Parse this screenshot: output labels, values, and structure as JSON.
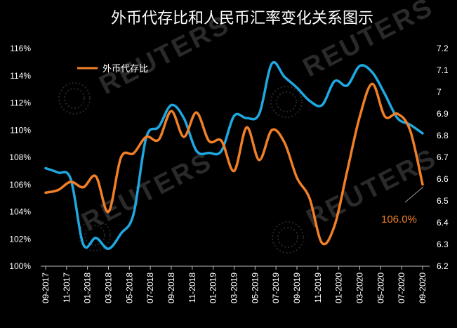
{
  "chart_data": {
    "type": "line",
    "title": "外币代存比和人民币汇率变化关系图示",
    "legend": {
      "entries": [
        "外币代存比"
      ],
      "placement": "top-left"
    },
    "annotation": "106.0%",
    "watermark": "REUTERS",
    "y_left": {
      "range": [
        1.0,
        1.16
      ],
      "ticks": [
        "100%",
        "102%",
        "104%",
        "106%",
        "108%",
        "110%",
        "112%",
        "114%",
        "116%"
      ]
    },
    "y_right": {
      "range": [
        6.2,
        7.2
      ],
      "ticks": [
        "6.2",
        "6.3",
        "6.4",
        "6.5",
        "6.6",
        "6.7",
        "6.8",
        "6.9",
        "7",
        "7.1",
        "7.2"
      ]
    },
    "x_labels": [
      "09-2017",
      "11-2017",
      "01-2018",
      "03-2018",
      "05-2018",
      "07-2018",
      "09-2018",
      "11-2018",
      "01-2019",
      "03-2019",
      "05-2019",
      "07-2019",
      "09-2019",
      "11-2019",
      "01-2020",
      "03-2020",
      "05-2020",
      "07-2020",
      "09-2020"
    ],
    "series": [
      {
        "name": "外币代存比",
        "axis": "left",
        "color": "#f07f28",
        "values": [
          1.054,
          1.056,
          1.062,
          1.058,
          1.066,
          1.04,
          1.08,
          1.083,
          1.095,
          1.093,
          1.114,
          1.095,
          1.113,
          1.092,
          1.092,
          1.07,
          1.102,
          1.078,
          1.1,
          1.091,
          1.065,
          1.05,
          1.017,
          1.03,
          1.07,
          1.11,
          1.134,
          1.11,
          1.112,
          1.1,
          1.06
        ]
      },
      {
        "axis": "right",
        "color": "#1fa8e0",
        "values": [
          6.65,
          6.63,
          6.6,
          6.3,
          6.33,
          6.28,
          6.35,
          6.44,
          6.79,
          6.84,
          6.94,
          6.88,
          6.73,
          6.72,
          6.73,
          6.89,
          6.88,
          6.9,
          7.13,
          7.07,
          7.02,
          6.96,
          6.94,
          7.05,
          7.03,
          7.12,
          7.09,
          6.99,
          6.88,
          6.85,
          6.81
        ]
      }
    ]
  }
}
